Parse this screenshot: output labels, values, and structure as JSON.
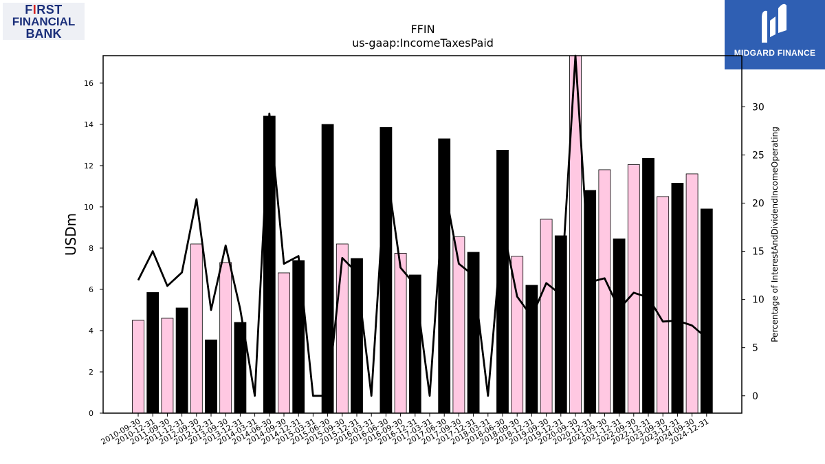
{
  "logos": {
    "left": {
      "line1_a": "F",
      "line1_b": "I",
      "line1_c": "RST",
      "line2": "FINANCIAL",
      "line3": "BANK"
    },
    "right": {
      "name": "MIDGARD FINANCE"
    }
  },
  "chart_data": {
    "type": "bar",
    "title": "FFIN",
    "subtitle": "us-gaap:IncomeTaxesPaid",
    "ylabel": "USDm",
    "y2label": "Percentage of InterestAndDividendIncomeOperating",
    "ylim": [
      0,
      17.33
    ],
    "y2lim": [
      -1.8,
      35.3
    ],
    "yticks": [
      0,
      2,
      4,
      6,
      8,
      10,
      12,
      14,
      16
    ],
    "y2ticks": [
      0,
      5,
      10,
      15,
      20,
      25,
      30
    ],
    "categories": [
      "2010-09-30",
      "2010-12-31",
      "2011-09-30",
      "2011-12-31",
      "2012-09-30",
      "2012-12-31",
      "2013-09-30",
      "2013-12-31",
      "2014-03-31",
      "2014-06-30",
      "2014-09-30",
      "2014-12-31",
      "2015-03-31",
      "2015-06-30",
      "2015-09-30",
      "2015-12-31",
      "2016-03-31",
      "2016-06-30",
      "2016-09-30",
      "2016-12-31",
      "2017-03-31",
      "2017-06-30",
      "2017-09-30",
      "2017-12-31",
      "2018-03-31",
      "2018-06-30",
      "2018-09-30",
      "2018-12-31",
      "2019-09-30",
      "2019-12-31",
      "2020-09-30",
      "2020-12-31",
      "2021-09-30",
      "2021-12-31",
      "2022-09-30",
      "2022-12-31",
      "2023-09-30",
      "2023-12-31",
      "2024-09-30",
      "2024-12-31"
    ],
    "series": [
      {
        "kind": "bar",
        "values": [
          4.5,
          5.85,
          4.6,
          5.1,
          8.2,
          3.55,
          7.3,
          4.4,
          0,
          14.4,
          6.8,
          7.4,
          0,
          14.0,
          8.2,
          7.5,
          0,
          13.85,
          7.75,
          6.7,
          0,
          13.3,
          8.55,
          7.8,
          0,
          12.75,
          7.6,
          6.2,
          9.4,
          8.6,
          17.33,
          10.8,
          11.8,
          8.45,
          12.05,
          12.35,
          10.5,
          11.15,
          11.6,
          9.9
        ],
        "colors": [
          "#ffc8e2",
          "#000000"
        ]
      },
      {
        "kind": "line",
        "axis": "right",
        "values": [
          12.0,
          15.0,
          11.4,
          12.8,
          20.4,
          8.9,
          15.6,
          9.0,
          0,
          29.3,
          13.7,
          14.5,
          0,
          0,
          14.3,
          12.8,
          0,
          24.0,
          13.3,
          11.5,
          0,
          21.8,
          13.7,
          12.5,
          0,
          17.7,
          10.3,
          8.2,
          11.7,
          10.5,
          35.3,
          11.8,
          12.2,
          9.0,
          10.7,
          10.2,
          7.7,
          7.8,
          7.3,
          6.0
        ],
        "color": "#000000"
      }
    ]
  }
}
